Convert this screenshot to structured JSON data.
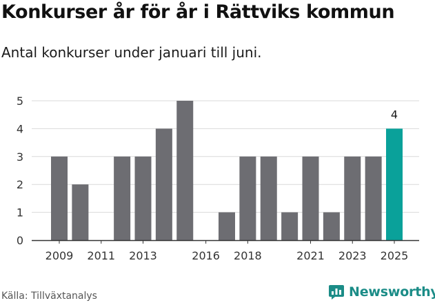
{
  "title": "Konkurser år för år i Rättviks kommun",
  "subtitle": "Antal konkurser under januari till juni.",
  "source": "Källa: Tillväxtanalys",
  "brand": {
    "name": "Newsworthy",
    "icon": "newsworthy-logo-icon",
    "color": "#1b8c87"
  },
  "chart_data": {
    "type": "bar",
    "categories": [
      "2009",
      "2010",
      "2011",
      "2012",
      "2013",
      "2014",
      "2015",
      "2016",
      "2017",
      "2018",
      "2019",
      "2020",
      "2021",
      "2022",
      "2023",
      "2024",
      "2025"
    ],
    "values": [
      3,
      2,
      0,
      3,
      3,
      4,
      5,
      0,
      1,
      3,
      3,
      1,
      3,
      1,
      3,
      3,
      4
    ],
    "x_tick_labels": [
      "2009",
      "2011",
      "2013",
      "2016",
      "2018",
      "2021",
      "2023",
      "2025"
    ],
    "y_ticks": [
      0,
      1,
      2,
      3,
      4,
      5
    ],
    "ylim": [
      0,
      5
    ],
    "grid": true,
    "highlight": {
      "category": "2025",
      "label": "4"
    },
    "colors": {
      "bar": "#6d6d72",
      "highlight": "#0aa19a",
      "grid": "#d9d9d9",
      "axis": "#333333"
    }
  }
}
